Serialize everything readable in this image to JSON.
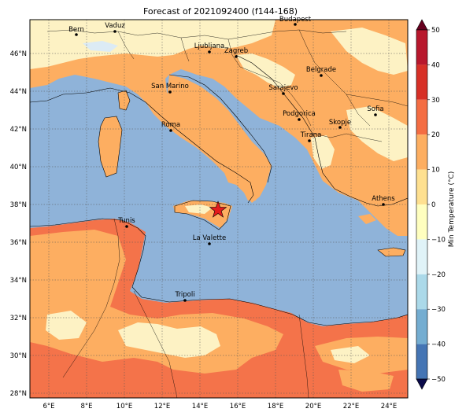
{
  "title": "Forecast of 2021092400 (f144-168)",
  "colorbar": {
    "label": "Min Temperature (°C)",
    "ticks": [
      "50",
      "40",
      "30",
      "20",
      "10",
      "0",
      "−10",
      "−20",
      "−30",
      "−40",
      "−50"
    ],
    "colors": [
      "#b8182d",
      "#d73027",
      "#f46d43",
      "#fdae61",
      "#fee090",
      "#ffffbf",
      "#e0f3f8",
      "#abd9e9",
      "#74add1",
      "#4575b4",
      "#313695"
    ],
    "overflow_high": "#67001f",
    "overflow_low": "#0a0a4a"
  },
  "axes": {
    "lon_ticks": [
      "6°E",
      "8°E",
      "10°E",
      "12°E",
      "14°E",
      "16°E",
      "18°E",
      "20°E",
      "22°E",
      "24°E"
    ],
    "lat_ticks": [
      "46°N",
      "44°N",
      "42°N",
      "40°N",
      "38°N",
      "36°N",
      "34°N",
      "32°N",
      "30°N",
      "28°N"
    ]
  },
  "cities": [
    {
      "name": "Bern"
    },
    {
      "name": "Vaduz"
    },
    {
      "name": "Budapest"
    },
    {
      "name": "Ljubljana"
    },
    {
      "name": "Zagreb"
    },
    {
      "name": "Belgrade"
    },
    {
      "name": "San Marino"
    },
    {
      "name": "Sarajevo"
    },
    {
      "name": "Roma"
    },
    {
      "name": "Podgorica"
    },
    {
      "name": "Skopje"
    },
    {
      "name": "Sofia"
    },
    {
      "name": "Tirana"
    },
    {
      "name": "Athens"
    },
    {
      "name": "Tunis"
    },
    {
      "name": "La Valette"
    },
    {
      "name": "Tripoli"
    }
  ],
  "marker": {
    "symbol": "star",
    "color": "#e31a1c"
  },
  "fill_colors": {
    "sea": "#8fb3d9",
    "warm": "#fdae61",
    "cool": "#fdf2c4",
    "hot": "#f4734a",
    "hotter": "#ef6a3f",
    "ice": "#dcebf5"
  }
}
